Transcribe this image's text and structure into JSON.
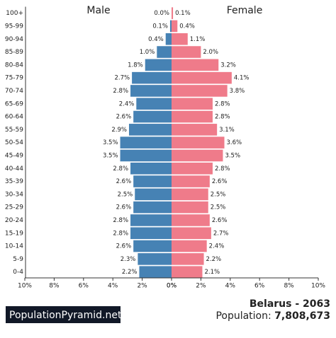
{
  "chart_data": {
    "type": "pyramid",
    "categories": [
      "100+",
      "95-99",
      "90-94",
      "85-89",
      "80-84",
      "75-79",
      "70-74",
      "65-69",
      "60-64",
      "55-59",
      "50-54",
      "45-49",
      "40-44",
      "35-39",
      "30-34",
      "25-29",
      "20-24",
      "15-19",
      "10-14",
      "5-9",
      "0-4"
    ],
    "series": [
      {
        "name": "Male",
        "color": "#4682b4",
        "values": [
          0.0,
          0.1,
          0.4,
          1.0,
          1.8,
          2.7,
          2.8,
          2.4,
          2.6,
          2.9,
          3.5,
          3.5,
          2.8,
          2.6,
          2.5,
          2.6,
          2.8,
          2.8,
          2.6,
          2.3,
          2.2
        ],
        "value_labels": [
          "0.0%",
          "0.1%",
          "0.4%",
          "1.0%",
          "1.8%",
          "2.7%",
          "2.8%",
          "2.4%",
          "2.6%",
          "2.9%",
          "3.5%",
          "3.5%",
          "2.8%",
          "2.6%",
          "2.5%",
          "2.6%",
          "2.8%",
          "2.8%",
          "2.6%",
          "2.3%",
          "2.2%"
        ]
      },
      {
        "name": "Female",
        "color": "#ef7b8a",
        "values": [
          0.1,
          0.4,
          1.1,
          2.0,
          3.2,
          4.1,
          3.8,
          2.8,
          2.8,
          3.1,
          3.6,
          3.5,
          2.8,
          2.6,
          2.5,
          2.5,
          2.6,
          2.7,
          2.4,
          2.2,
          2.1
        ],
        "value_labels": [
          "0.1%",
          "0.4%",
          "1.1%",
          "2.0%",
          "3.2%",
          "4.1%",
          "3.8%",
          "2.8%",
          "2.8%",
          "3.1%",
          "3.6%",
          "3.5%",
          "2.8%",
          "2.6%",
          "2.5%",
          "2.5%",
          "2.6%",
          "2.7%",
          "2.4%",
          "2.2%",
          "2.1%"
        ]
      }
    ],
    "xlim": [
      0,
      10
    ],
    "xticks": [
      {
        "value": 0,
        "label": "0%"
      },
      {
        "value": 2,
        "label": "2%"
      },
      {
        "value": 4,
        "label": "4%"
      },
      {
        "value": 6,
        "label": "6%"
      },
      {
        "value": 8,
        "label": "8%"
      },
      {
        "value": 10,
        "label": "10%"
      }
    ]
  },
  "footer": {
    "site": "PopulationPyramid.net",
    "title": "Belarus - 2063",
    "population_label": "Population:",
    "population": "7,808,673"
  }
}
